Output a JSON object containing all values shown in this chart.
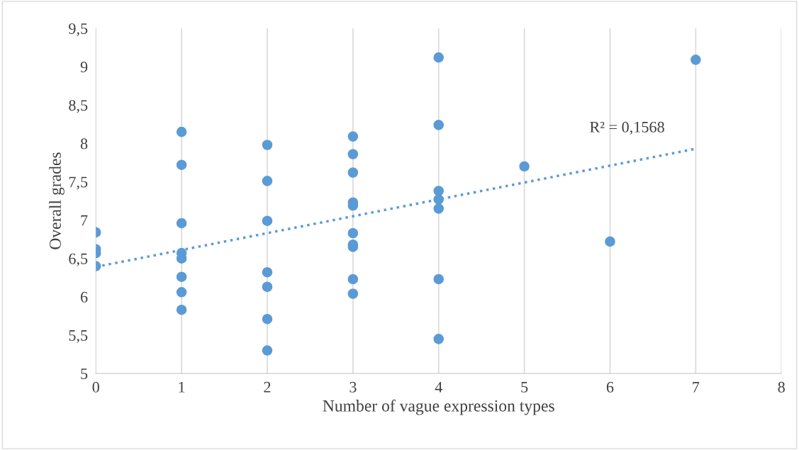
{
  "chart_data": {
    "type": "scatter",
    "xlabel": "Number of vague expression types",
    "ylabel": "Overall grades",
    "series": [
      {
        "color": "#5b9bd5",
        "marker": "circle",
        "x": [
          0,
          0,
          0,
          0,
          1,
          1,
          1,
          1,
          1,
          1,
          1,
          1,
          2,
          2,
          2,
          2,
          2,
          2,
          2,
          3,
          3,
          3,
          3,
          3,
          3,
          3,
          3,
          3,
          3,
          4,
          4,
          4,
          4,
          4,
          4,
          4,
          5,
          6,
          7
        ],
        "values": [
          6.84,
          6.62,
          6.57,
          6.4,
          8.15,
          7.72,
          6.96,
          6.57,
          6.5,
          6.26,
          6.06,
          5.83,
          7.98,
          7.51,
          6.99,
          6.32,
          6.13,
          5.71,
          5.3,
          8.09,
          7.86,
          7.62,
          7.23,
          7.19,
          6.83,
          6.68,
          6.65,
          6.23,
          6.04,
          9.12,
          8.24,
          7.38,
          7.27,
          7.15,
          6.23,
          5.45,
          7.7,
          6.72,
          9.09
        ]
      },
      {
        "type": "line",
        "color": "#5b9bd5",
        "line_style": "dotted",
        "x": [
          0,
          7
        ],
        "values": [
          6.39,
          7.93
        ]
      }
    ],
    "annotations": [
      "R² = 0,1568"
    ],
    "xlim": [
      0,
      8
    ],
    "xticks": [
      0,
      1,
      2,
      3,
      4,
      5,
      6,
      7,
      8
    ],
    "ylim": [
      5,
      9.5
    ],
    "yticks": [
      5,
      {
        "value": 5.5,
        "label": "5,5"
      },
      6,
      {
        "value": 6.5,
        "label": "6,5"
      },
      7,
      {
        "value": 7.5,
        "label": "7,5"
      },
      8,
      {
        "value": 8.5,
        "label": "8,5"
      },
      9,
      {
        "value": 9.5,
        "label": "9,5"
      }
    ],
    "grid": "x",
    "legend": false
  }
}
